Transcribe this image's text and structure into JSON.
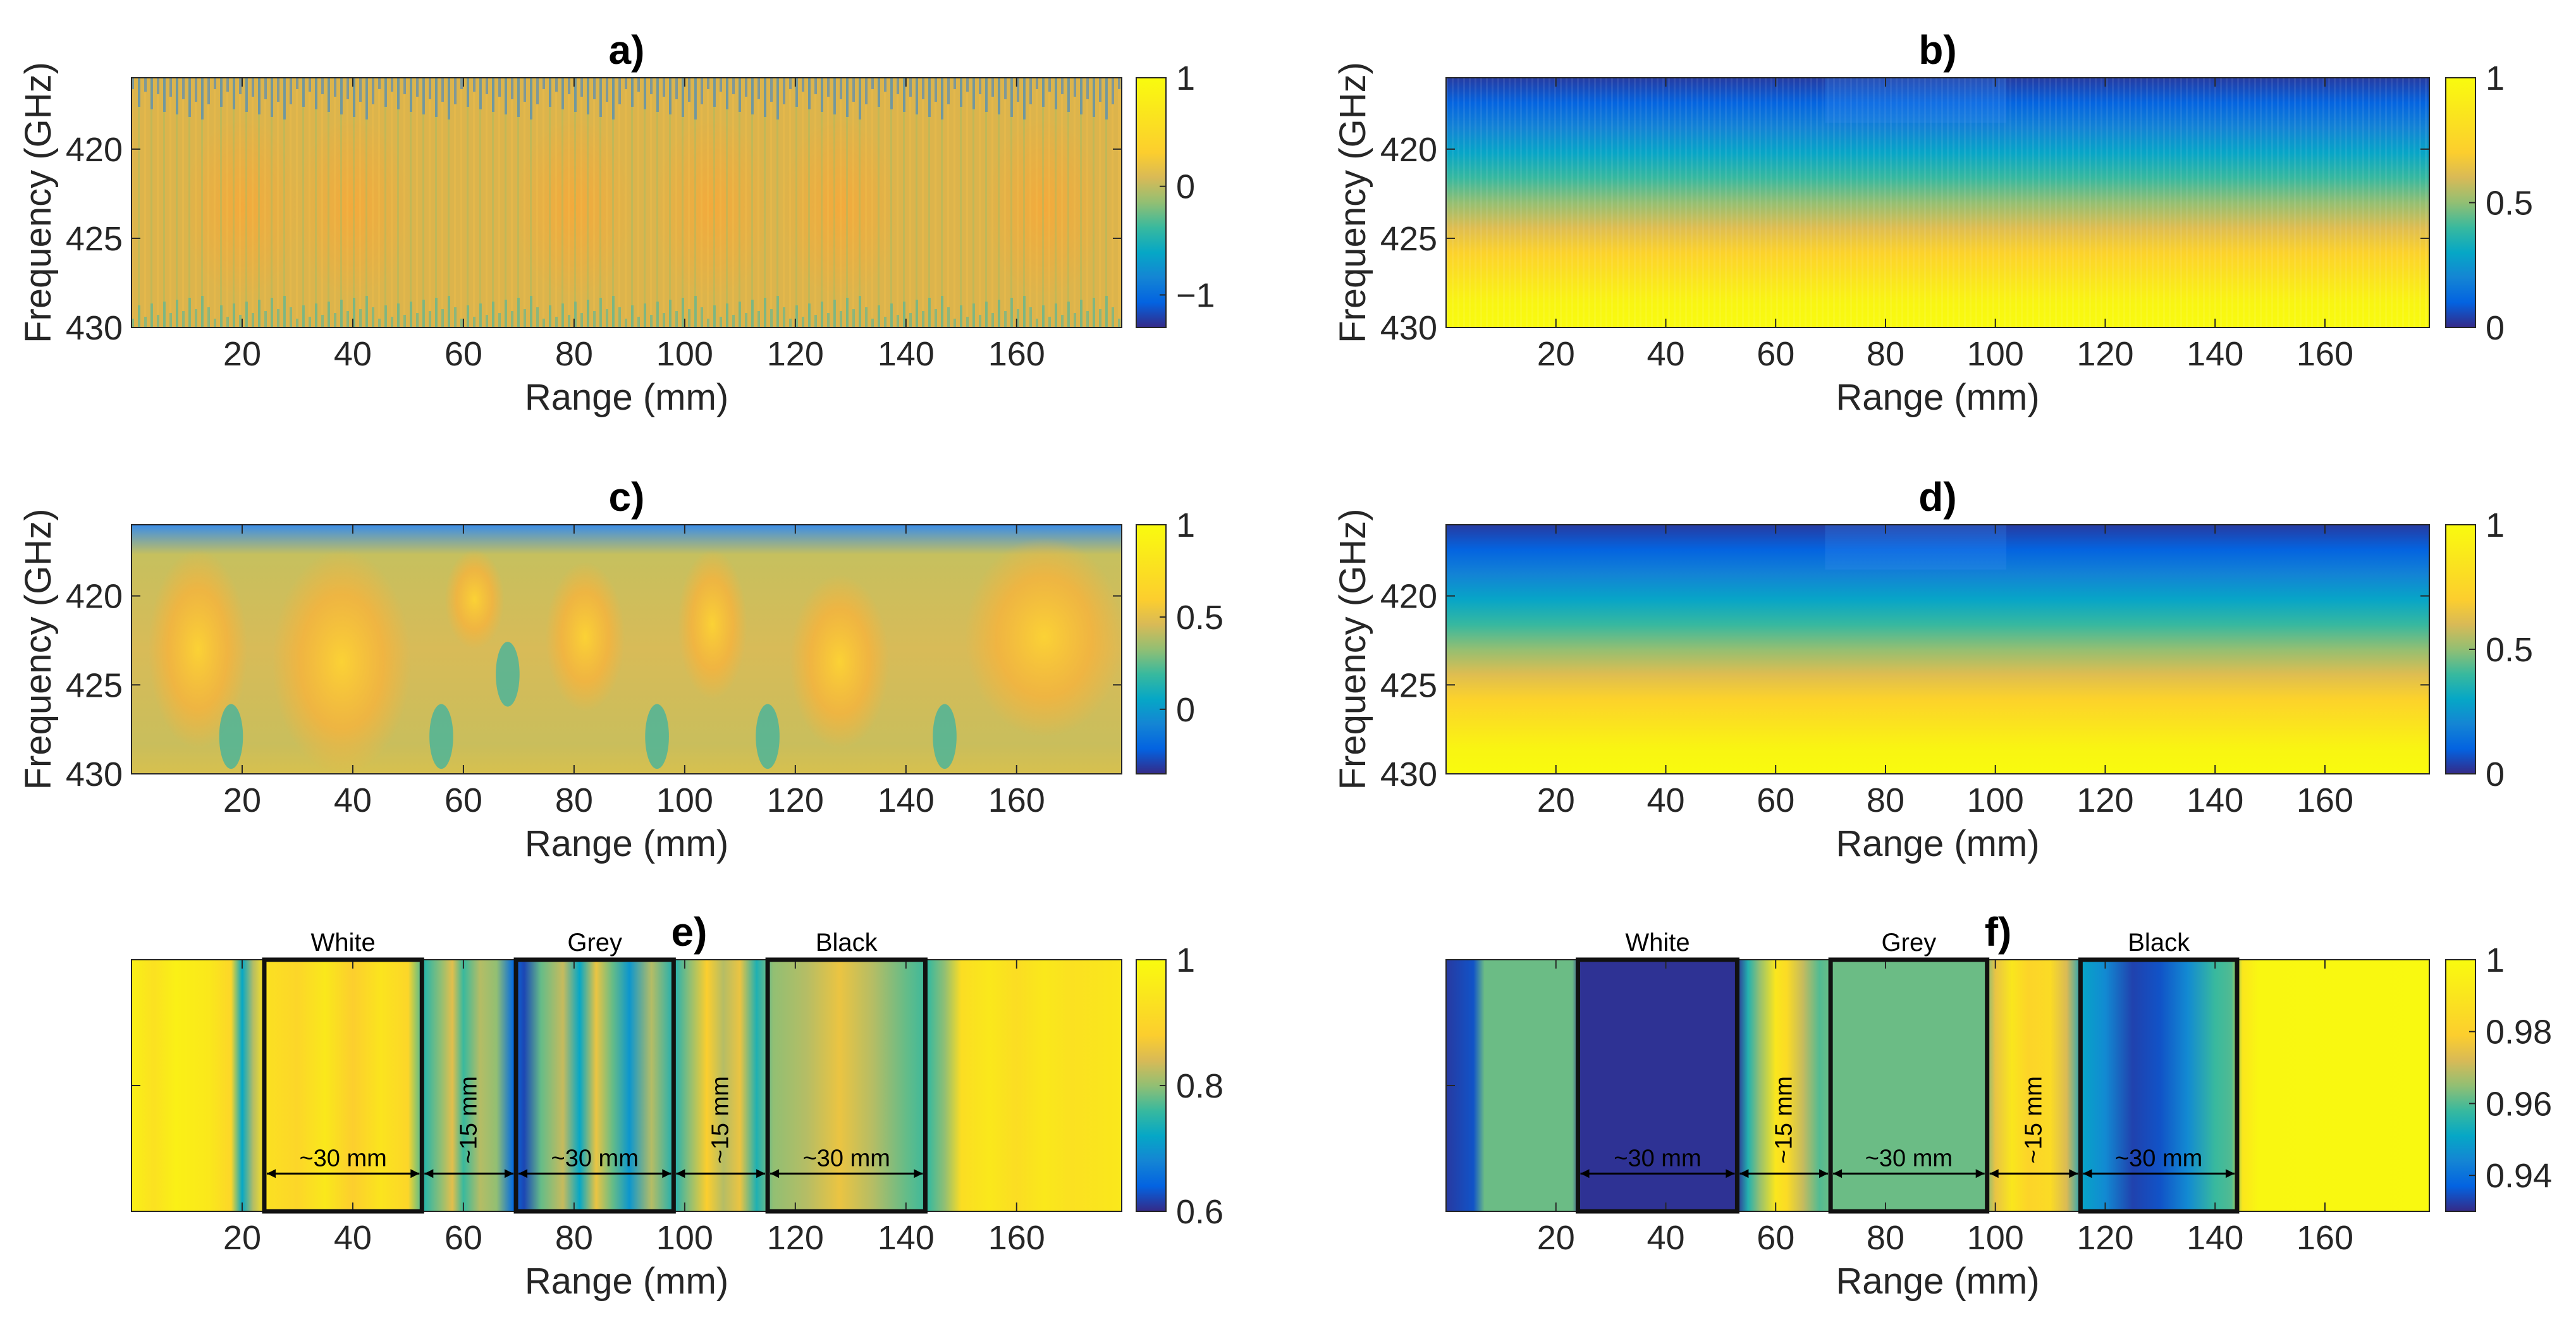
{
  "figure": {
    "background": "#ffffff"
  },
  "chart_data": [
    {
      "id": "a",
      "type": "heatmap",
      "title": "a)",
      "xlabel": "Range (mm)",
      "ylabel": "Frequency (GHz)",
      "xlim": [
        0,
        179
      ],
      "ylim": [
        416,
        430
      ],
      "y_reversed": true,
      "xticks": [
        20,
        40,
        60,
        80,
        100,
        120,
        140,
        160
      ],
      "yticks": [
        420,
        425,
        430
      ],
      "colorbar": {
        "limits": [
          -1.3,
          1
        ],
        "ticks": [
          1,
          0,
          -1
        ],
        "tick_labels": [
          "1",
          "0",
          "−1"
        ]
      },
      "pattern": "fringes"
    },
    {
      "id": "b",
      "type": "heatmap",
      "title": "b)",
      "xlabel": "Range (mm)",
      "ylabel": "Frequency (GHz)",
      "xlim": [
        0,
        179
      ],
      "ylim": [
        416,
        430
      ],
      "y_reversed": true,
      "xticks": [
        20,
        40,
        60,
        80,
        100,
        120,
        140,
        160
      ],
      "yticks": [
        420,
        425,
        430
      ],
      "colorbar": {
        "limits": [
          0,
          1
        ],
        "ticks": [
          1,
          0.5,
          0
        ],
        "tick_labels": [
          "1",
          "0.5",
          "0"
        ]
      },
      "pattern": "vertical-gradient-striped"
    },
    {
      "id": "c",
      "type": "heatmap",
      "title": "c)",
      "xlabel": "Range (mm)",
      "ylabel": "Frequency (GHz)",
      "xlim": [
        0,
        179
      ],
      "ylim": [
        416,
        430
      ],
      "y_reversed": true,
      "xticks": [
        20,
        40,
        60,
        80,
        100,
        120,
        140,
        160
      ],
      "yticks": [
        420,
        425,
        430
      ],
      "colorbar": {
        "limits": [
          -0.35,
          1
        ],
        "ticks": [
          1,
          0.5,
          0
        ],
        "tick_labels": [
          "1",
          "0.5",
          "0"
        ]
      },
      "pattern": "blobs"
    },
    {
      "id": "d",
      "type": "heatmap",
      "title": "d)",
      "xlabel": "Range (mm)",
      "ylabel": "Frequency (GHz)",
      "xlim": [
        0,
        179
      ],
      "ylim": [
        416,
        430
      ],
      "y_reversed": true,
      "xticks": [
        20,
        40,
        60,
        80,
        100,
        120,
        140,
        160
      ],
      "yticks": [
        420,
        425,
        430
      ],
      "colorbar": {
        "limits": [
          0,
          1
        ],
        "ticks": [
          1,
          0.5,
          0
        ],
        "tick_labels": [
          "1",
          "0.5",
          "0"
        ]
      },
      "pattern": "vertical-gradient-smooth"
    },
    {
      "id": "e",
      "type": "heatmap",
      "title": "e)",
      "xlabel": "Range (mm)",
      "ylabel": "",
      "xlim": [
        0,
        179
      ],
      "xticks": [
        20,
        40,
        60,
        80,
        100,
        120,
        140,
        160
      ],
      "colorbar": {
        "limits": [
          0.6,
          1
        ],
        "ticks": [
          1,
          0.8,
          0.6
        ],
        "tick_labels": [
          "1",
          "0.8",
          "0.6"
        ]
      },
      "profile": [
        {
          "x": 0,
          "v": 0.97
        },
        {
          "x": 4,
          "v": 0.93
        },
        {
          "x": 8,
          "v": 0.97
        },
        {
          "x": 14,
          "v": 0.95
        },
        {
          "x": 18,
          "v": 0.9
        },
        {
          "x": 20,
          "v": 0.72
        },
        {
          "x": 22,
          "v": 0.82
        },
        {
          "x": 24,
          "v": 0.93
        },
        {
          "x": 30,
          "v": 0.9
        },
        {
          "x": 35,
          "v": 0.95
        },
        {
          "x": 40,
          "v": 0.88
        },
        {
          "x": 45,
          "v": 0.94
        },
        {
          "x": 50,
          "v": 0.9
        },
        {
          "x": 53,
          "v": 0.75
        },
        {
          "x": 56,
          "v": 0.8
        },
        {
          "x": 58,
          "v": 0.85
        },
        {
          "x": 60,
          "v": 0.76
        },
        {
          "x": 63,
          "v": 0.82
        },
        {
          "x": 66,
          "v": 0.8
        },
        {
          "x": 69,
          "v": 0.65
        },
        {
          "x": 71,
          "v": 0.62
        },
        {
          "x": 74,
          "v": 0.78
        },
        {
          "x": 78,
          "v": 0.83
        },
        {
          "x": 81,
          "v": 0.72
        },
        {
          "x": 84,
          "v": 0.86
        },
        {
          "x": 87,
          "v": 0.78
        },
        {
          "x": 90,
          "v": 0.7
        },
        {
          "x": 94,
          "v": 0.82
        },
        {
          "x": 98,
          "v": 0.74
        },
        {
          "x": 101,
          "v": 0.8
        },
        {
          "x": 104,
          "v": 0.88
        },
        {
          "x": 107,
          "v": 0.82
        },
        {
          "x": 110,
          "v": 0.86
        },
        {
          "x": 113,
          "v": 0.74
        },
        {
          "x": 116,
          "v": 0.8
        },
        {
          "x": 122,
          "v": 0.82
        },
        {
          "x": 128,
          "v": 0.86
        },
        {
          "x": 134,
          "v": 0.82
        },
        {
          "x": 140,
          "v": 0.78
        },
        {
          "x": 144,
          "v": 0.76
        },
        {
          "x": 147,
          "v": 0.8
        },
        {
          "x": 150,
          "v": 0.92
        },
        {
          "x": 155,
          "v": 0.95
        },
        {
          "x": 160,
          "v": 0.92
        },
        {
          "x": 165,
          "v": 0.95
        },
        {
          "x": 170,
          "v": 0.93
        },
        {
          "x": 179,
          "v": 0.95
        }
      ],
      "regions": [
        {
          "label": "White",
          "x0": 24,
          "x1": 52.5
        },
        {
          "label": "Grey",
          "x0": 69.5,
          "x1": 98
        },
        {
          "label": "Black",
          "x0": 115,
          "x1": 143.5
        }
      ],
      "annotations": [
        {
          "text": "~30 mm",
          "x0": 24,
          "x1": 52.5,
          "orient": "h"
        },
        {
          "text": "~15 mm",
          "x0": 52.5,
          "x1": 69.5,
          "orient": "v"
        },
        {
          "text": "~30 mm",
          "x0": 69.5,
          "x1": 98,
          "orient": "h"
        },
        {
          "text": "~15 mm",
          "x0": 98,
          "x1": 115,
          "orient": "v"
        },
        {
          "text": "~30 mm",
          "x0": 115,
          "x1": 143.5,
          "orient": "h"
        }
      ]
    },
    {
      "id": "f",
      "type": "heatmap",
      "title": "f)",
      "xlabel": "Range (mm)",
      "ylabel": "",
      "xlim": [
        0,
        179
      ],
      "xticks": [
        20,
        40,
        60,
        80,
        100,
        120,
        140,
        160
      ],
      "colorbar": {
        "limits": [
          0.93,
          1
        ],
        "ticks": [
          1,
          0.98,
          0.96,
          0.94
        ],
        "tick_labels": [
          "1",
          "0.98",
          "0.96",
          "0.94"
        ]
      },
      "profile": [
        {
          "x": 0,
          "v": 0.932
        },
        {
          "x": 5,
          "v": 0.935
        },
        {
          "x": 7,
          "v": 0.962
        },
        {
          "x": 23,
          "v": 0.962
        },
        {
          "x": 24.5,
          "v": 0.931
        },
        {
          "x": 53,
          "v": 0.931
        },
        {
          "x": 55,
          "v": 0.955
        },
        {
          "x": 57,
          "v": 0.965
        },
        {
          "x": 60,
          "v": 0.99
        },
        {
          "x": 62,
          "v": 0.985
        },
        {
          "x": 65,
          "v": 0.97
        },
        {
          "x": 68,
          "v": 0.96
        },
        {
          "x": 70,
          "v": 0.962
        },
        {
          "x": 98,
          "v": 0.962
        },
        {
          "x": 100,
          "v": 0.975
        },
        {
          "x": 103,
          "v": 0.99
        },
        {
          "x": 106,
          "v": 0.982
        },
        {
          "x": 110,
          "v": 0.985
        },
        {
          "x": 113,
          "v": 0.972
        },
        {
          "x": 116,
          "v": 0.95
        },
        {
          "x": 120,
          "v": 0.945
        },
        {
          "x": 125,
          "v": 0.933
        },
        {
          "x": 130,
          "v": 0.935
        },
        {
          "x": 135,
          "v": 0.945
        },
        {
          "x": 140,
          "v": 0.958
        },
        {
          "x": 143,
          "v": 0.96
        },
        {
          "x": 145,
          "v": 0.99
        },
        {
          "x": 148,
          "v": 0.998
        },
        {
          "x": 179,
          "v": 0.999
        }
      ],
      "regions": [
        {
          "label": "White",
          "x0": 24,
          "x1": 53
        },
        {
          "label": "Grey",
          "x0": 70,
          "x1": 98.5
        },
        {
          "label": "Black",
          "x0": 115.5,
          "x1": 144
        }
      ],
      "annotations": [
        {
          "text": "~30 mm",
          "x0": 24,
          "x1": 53,
          "orient": "h"
        },
        {
          "text": "~15 mm",
          "x0": 53,
          "x1": 70,
          "orient": "v"
        },
        {
          "text": "~30 mm",
          "x0": 70,
          "x1": 98.5,
          "orient": "h"
        },
        {
          "text": "~15 mm",
          "x0": 98.5,
          "x1": 115.5,
          "orient": "v"
        },
        {
          "text": "~30 mm",
          "x0": 115.5,
          "x1": 144,
          "orient": "h"
        }
      ]
    }
  ]
}
